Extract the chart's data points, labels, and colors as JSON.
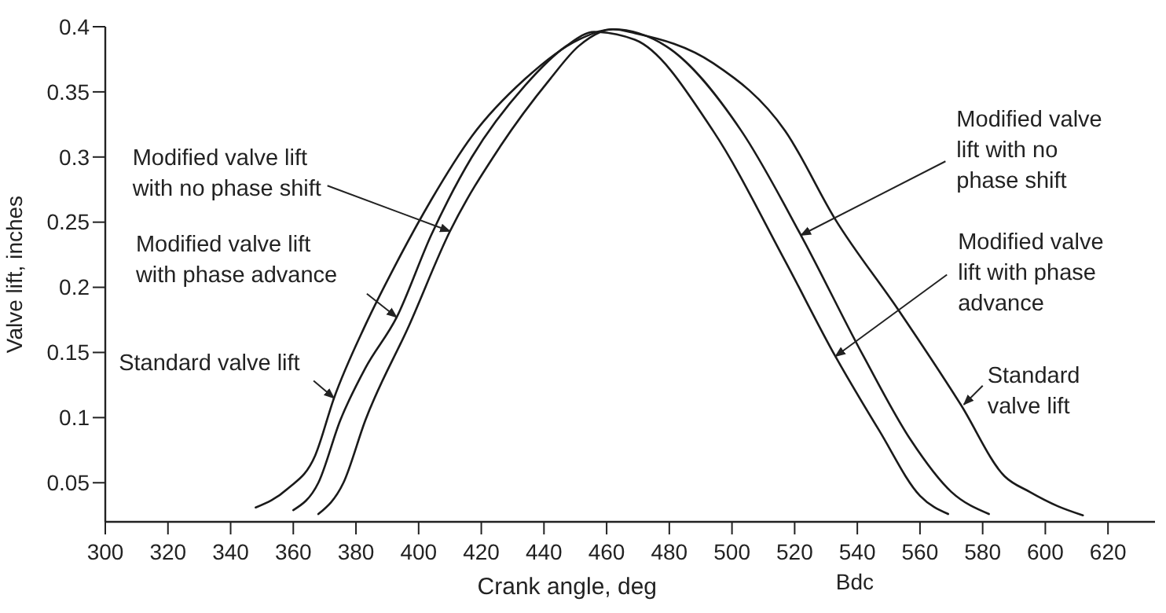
{
  "chart_data": {
    "type": "line",
    "xlabel": "Crank angle, deg",
    "ylabel": "Valve lift, inches",
    "xlim": [
      300,
      635
    ],
    "ylim": [
      0.02,
      0.4
    ],
    "xticks": [
      300,
      320,
      340,
      360,
      380,
      400,
      420,
      440,
      460,
      480,
      500,
      520,
      540,
      560,
      580,
      600,
      620
    ],
    "yticks": [
      0.05,
      0.1,
      0.15,
      0.2,
      0.25,
      0.3,
      0.35,
      0.4
    ],
    "grid": false,
    "marker": "none",
    "line_style": "solid",
    "series": [
      {
        "color": "#1a1a1a",
        "x": [
          348,
          358,
          367,
          373,
          383,
          393,
          404,
          417,
          434,
          451,
          462,
          469,
          494,
          517,
          533,
          553,
          573,
          587,
          595,
          604,
          612
        ],
        "values": [
          0.031,
          0.045,
          0.071,
          0.115,
          0.171,
          0.219,
          0.267,
          0.316,
          0.36,
          0.39,
          0.398,
          0.395,
          0.372,
          0.32,
          0.252,
          0.183,
          0.11,
          0.055,
          0.043,
          0.032,
          0.025
        ]
      },
      {
        "color": "#1a1a1a",
        "x": [
          360,
          368,
          375,
          383,
          393,
          404,
          417,
          434,
          447,
          456,
          469,
          494,
          517,
          533,
          547,
          560,
          569
        ],
        "values": [
          0.029,
          0.05,
          0.098,
          0.138,
          0.177,
          0.24,
          0.3,
          0.355,
          0.385,
          0.396,
          0.39,
          0.32,
          0.22,
          0.147,
          0.09,
          0.04,
          0.026
        ]
      },
      {
        "color": "#1a1a1a",
        "x": [
          368,
          376,
          383,
          397,
          410,
          426,
          442,
          451,
          462,
          479,
          503,
          522,
          542,
          557,
          570,
          582
        ],
        "values": [
          0.026,
          0.05,
          0.098,
          0.171,
          0.243,
          0.308,
          0.36,
          0.385,
          0.398,
          0.385,
          0.32,
          0.24,
          0.147,
          0.083,
          0.043,
          0.026
        ]
      }
    ],
    "annotations": [
      {
        "text": "Modified valve lift\nwith no phase shift",
        "x": 410,
        "y": 0.243
      },
      {
        "text": "Modified valve lift\nwith phase advance",
        "x": 393,
        "y": 0.177
      },
      {
        "text": "Standard valve lift",
        "x": 373,
        "y": 0.115
      },
      {
        "text": "Modified valve\nlift with no\nphase shift",
        "x": 522,
        "y": 0.24
      },
      {
        "text": "Modified valve\nlift with phase\nadvance",
        "x": 533,
        "y": 0.147
      },
      {
        "text": "Standard\nvalve lift",
        "x": 574,
        "y": 0.11
      },
      "Bdc"
    ]
  }
}
